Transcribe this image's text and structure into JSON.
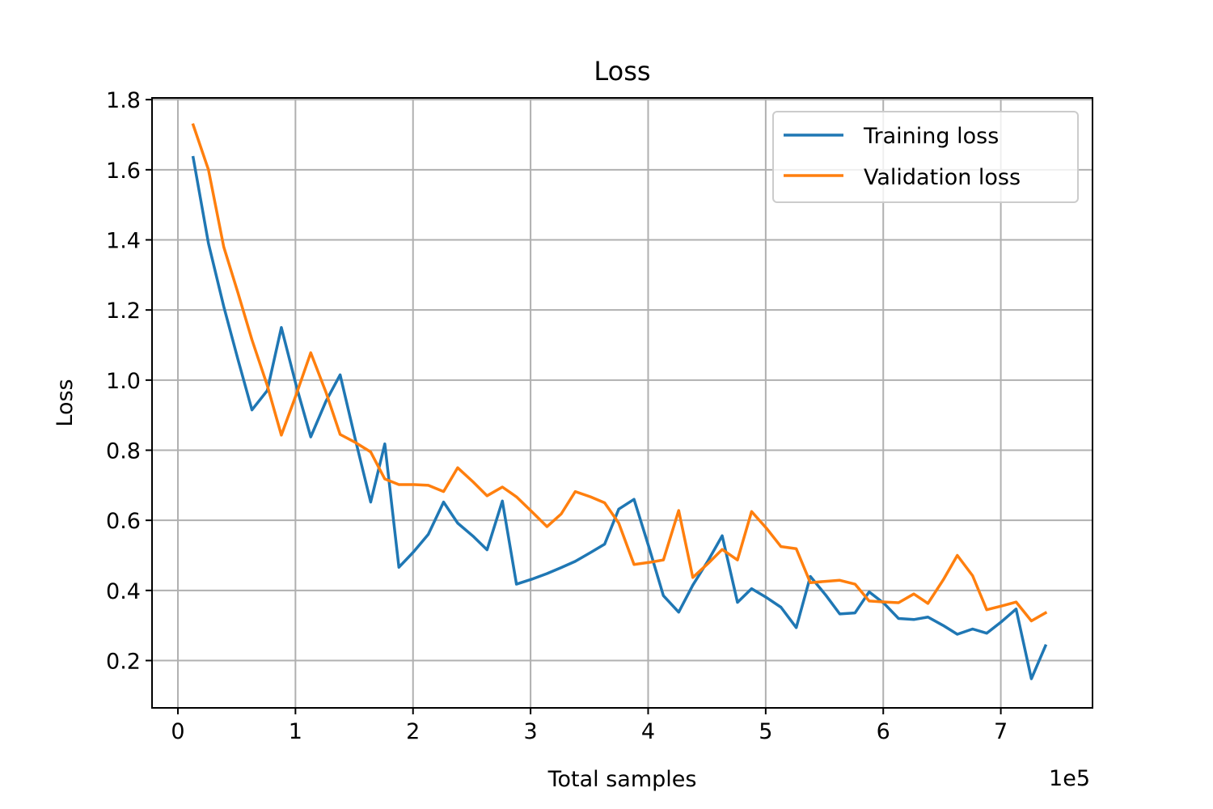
{
  "chart_data": {
    "type": "line",
    "title": "Loss",
    "xlabel": "Total samples",
    "ylabel": "Loss",
    "x_offset_label": "1e5",
    "xlim": [
      -0.22,
      7.78
    ],
    "ylim": [
      0.065,
      1.805
    ],
    "xticks": [
      0,
      1,
      2,
      3,
      4,
      5,
      6,
      7
    ],
    "xtick_labels": [
      "0",
      "1",
      "2",
      "3",
      "4",
      "5",
      "6",
      "7"
    ],
    "yticks": [
      0.2,
      0.4,
      0.6,
      0.8,
      1.0,
      1.2,
      1.4,
      1.6,
      1.8
    ],
    "ytick_labels": [
      "0.2",
      "0.4",
      "0.6",
      "0.8",
      "1.0",
      "1.2",
      "1.4",
      "1.6",
      "1.8"
    ],
    "grid": true,
    "legend_position": "top-right",
    "series": [
      {
        "name": "Training loss",
        "color": "#1f77b4",
        "x": [
          0.13,
          0.26,
          0.39,
          0.51,
          0.63,
          0.76,
          0.88,
          1.01,
          1.13,
          1.26,
          1.38,
          1.51,
          1.64,
          1.76,
          1.88,
          2.01,
          2.13,
          2.26,
          2.38,
          2.51,
          2.63,
          2.76,
          2.88,
          3.01,
          3.14,
          3.26,
          3.38,
          3.51,
          3.63,
          3.75,
          3.88,
          4.01,
          4.13,
          4.26,
          4.38,
          4.51,
          4.63,
          4.76,
          4.88,
          5.01,
          5.13,
          5.26,
          5.38,
          5.51,
          5.63,
          5.76,
          5.88,
          6.01,
          6.13,
          6.26,
          6.38,
          6.51,
          6.63,
          6.76,
          6.88,
          7.01,
          7.13,
          7.26,
          7.38
        ],
        "y": [
          1.635,
          1.39,
          1.21,
          1.06,
          0.915,
          0.97,
          1.15,
          0.98,
          0.838,
          0.94,
          1.015,
          0.83,
          0.652,
          0.818,
          0.466,
          0.512,
          0.56,
          0.652,
          0.592,
          0.555,
          0.516,
          0.655,
          0.418,
          0.432,
          0.448,
          0.465,
          0.483,
          0.508,
          0.532,
          0.632,
          0.66,
          0.52,
          0.385,
          0.338,
          0.415,
          0.485,
          0.556,
          0.366,
          0.405,
          0.379,
          0.352,
          0.294,
          0.44,
          0.387,
          0.333,
          0.336,
          0.396,
          0.362,
          0.32,
          0.317,
          0.324,
          0.3,
          0.275,
          0.29,
          0.278,
          0.312,
          0.347,
          0.148,
          0.242
        ]
      },
      {
        "name": "Validation loss",
        "color": "#ff7f0e",
        "x": [
          0.13,
          0.26,
          0.39,
          0.51,
          0.63,
          0.76,
          0.88,
          1.01,
          1.13,
          1.26,
          1.38,
          1.51,
          1.64,
          1.76,
          1.88,
          2.01,
          2.13,
          2.26,
          2.38,
          2.51,
          2.63,
          2.76,
          2.88,
          3.01,
          3.14,
          3.26,
          3.38,
          3.51,
          3.63,
          3.75,
          3.88,
          4.01,
          4.13,
          4.26,
          4.38,
          4.51,
          4.63,
          4.76,
          4.88,
          5.01,
          5.13,
          5.26,
          5.38,
          5.51,
          5.63,
          5.76,
          5.88,
          6.01,
          6.13,
          6.26,
          6.38,
          6.51,
          6.63,
          6.76,
          6.88,
          7.01,
          7.13,
          7.26,
          7.38
        ],
        "y": [
          1.728,
          1.6,
          1.38,
          1.25,
          1.115,
          0.985,
          0.843,
          0.962,
          1.078,
          0.965,
          0.845,
          0.822,
          0.795,
          0.718,
          0.702,
          0.702,
          0.7,
          0.682,
          0.75,
          0.71,
          0.67,
          0.695,
          0.667,
          0.625,
          0.582,
          0.618,
          0.682,
          0.667,
          0.65,
          0.592,
          0.474,
          0.48,
          0.487,
          0.628,
          0.437,
          0.477,
          0.517,
          0.487,
          0.625,
          0.576,
          0.525,
          0.519,
          0.422,
          0.426,
          0.429,
          0.418,
          0.37,
          0.367,
          0.365,
          0.39,
          0.363,
          0.43,
          0.5,
          0.442,
          0.345,
          0.356,
          0.367,
          0.313,
          0.336
        ]
      }
    ]
  }
}
